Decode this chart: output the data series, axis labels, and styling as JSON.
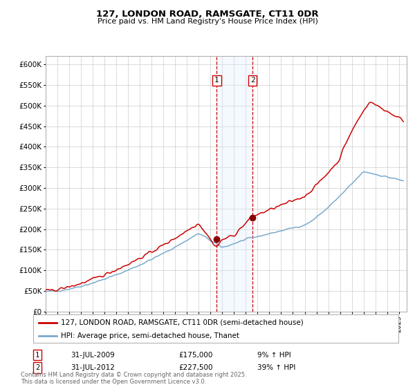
{
  "title": "127, LONDON ROAD, RAMSGATE, CT11 0DR",
  "subtitle": "Price paid vs. HM Land Registry's House Price Index (HPI)",
  "ylabel_ticks": [
    "£0",
    "£50K",
    "£100K",
    "£150K",
    "£200K",
    "£250K",
    "£300K",
    "£350K",
    "£400K",
    "£450K",
    "£500K",
    "£550K",
    "£600K"
  ],
  "ytick_values": [
    0,
    50000,
    100000,
    150000,
    200000,
    250000,
    300000,
    350000,
    400000,
    450000,
    500000,
    550000,
    600000
  ],
  "ylim": [
    0,
    620000
  ],
  "sale1_price": 175000,
  "sale2_price": 227500,
  "line_color_red": "#cc0000",
  "line_color_blue": "#7aaacc",
  "marker_color": "#880000",
  "vline_color": "#cc0000",
  "shade_color": "#ddeeff",
  "grid_color": "#cccccc",
  "bg_color": "#ffffff",
  "legend_label_red": "127, LONDON ROAD, RAMSGATE, CT11 0DR (semi-detached house)",
  "legend_label_blue": "HPI: Average price, semi-detached house, Thanet",
  "footer": "Contains HM Land Registry data © Crown copyright and database right 2025.\nThis data is licensed under the Open Government Licence v3.0.",
  "annotation_rows": [
    {
      "box": "1",
      "date": "31-JUL-2009",
      "price": "£175,000",
      "pct": "9% ↑ HPI"
    },
    {
      "box": "2",
      "date": "31-JUL-2012",
      "price": "£227,500",
      "pct": "39% ↑ HPI"
    }
  ]
}
